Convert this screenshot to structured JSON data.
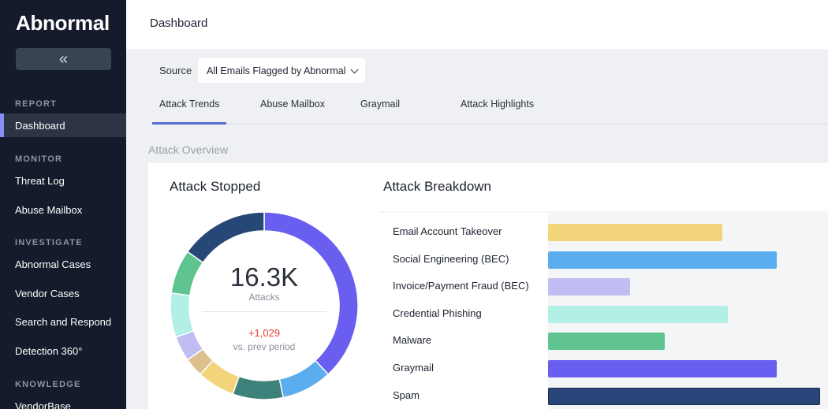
{
  "sidebar": {
    "logo": "Abnormal",
    "collapse_icon": "double-chevron-left-icon",
    "collapse_glyph": "«",
    "sections": {
      "report": "REPORT",
      "monitor": "MONITOR",
      "investigate": "INVESTIGATE",
      "knowledge": "KNOWLEDGE"
    },
    "items": {
      "dashboard": "Dashboard",
      "threat_log": "Threat Log",
      "abuse_mailbox": "Abuse Mailbox",
      "abnormal_cases": "Abnormal Cases",
      "vendor_cases": "Vendor Cases",
      "search_respond": "Search and Respond",
      "detection_360": "Detection 360°",
      "vendorbase": "VendorBase"
    },
    "active_item": "Dashboard"
  },
  "header": {
    "title": "Dashboard"
  },
  "filter": {
    "source_label": "Source",
    "source_value": "All Emails Flagged by Abnormal"
  },
  "tabs": {
    "attack_trends": "Attack Trends",
    "abuse_mailbox": "Abuse Mailbox",
    "graymail": "Graymail",
    "attack_highlights": "Attack Highlights",
    "active": "Attack Trends"
  },
  "overview": {
    "title": "Attack Overview",
    "stopped": {
      "title": "Attack Stopped",
      "total": "16.3K",
      "total_label": "Attacks",
      "delta": "+1,029",
      "delta_label": "vs. prev period"
    },
    "breakdown": {
      "title": "Attack Breakdown"
    }
  },
  "colors": {
    "sidebar_bg": "#141b2b",
    "accent": "#8b8ff5",
    "delta_red": "#e0403a"
  },
  "chart_data": {
    "type": "bar",
    "orientation": "horizontal",
    "categories": [
      "Email Account Takeover",
      "Social Engineering (BEC)",
      "Invoice/Payment Fraud (BEC)",
      "Credential Phishing",
      "Malware",
      "Graymail",
      "Spam"
    ],
    "values": [
      0.64,
      0.84,
      0.3,
      0.66,
      0.43,
      0.84,
      1.0
    ],
    "colors": [
      "#f2d57a",
      "#5aaef0",
      "#c0bdf2",
      "#b2efe4",
      "#5fc490",
      "#6a5ef0",
      "#29467a"
    ],
    "donut": {
      "segments": [
        {
          "color": "#6a5ef0",
          "value": 35
        },
        {
          "color": "#5aaef0",
          "value": 8
        },
        {
          "color": "#3e807a",
          "value": 8
        },
        {
          "color": "#f2d57a",
          "value": 6
        },
        {
          "color": "#dcc08e",
          "value": 3
        },
        {
          "color": "#c0bdf2",
          "value": 4
        },
        {
          "color": "#b2efe4",
          "value": 7
        },
        {
          "color": "#5fc490",
          "value": 7
        },
        {
          "color": "#264876",
          "value": 14
        }
      ]
    }
  }
}
